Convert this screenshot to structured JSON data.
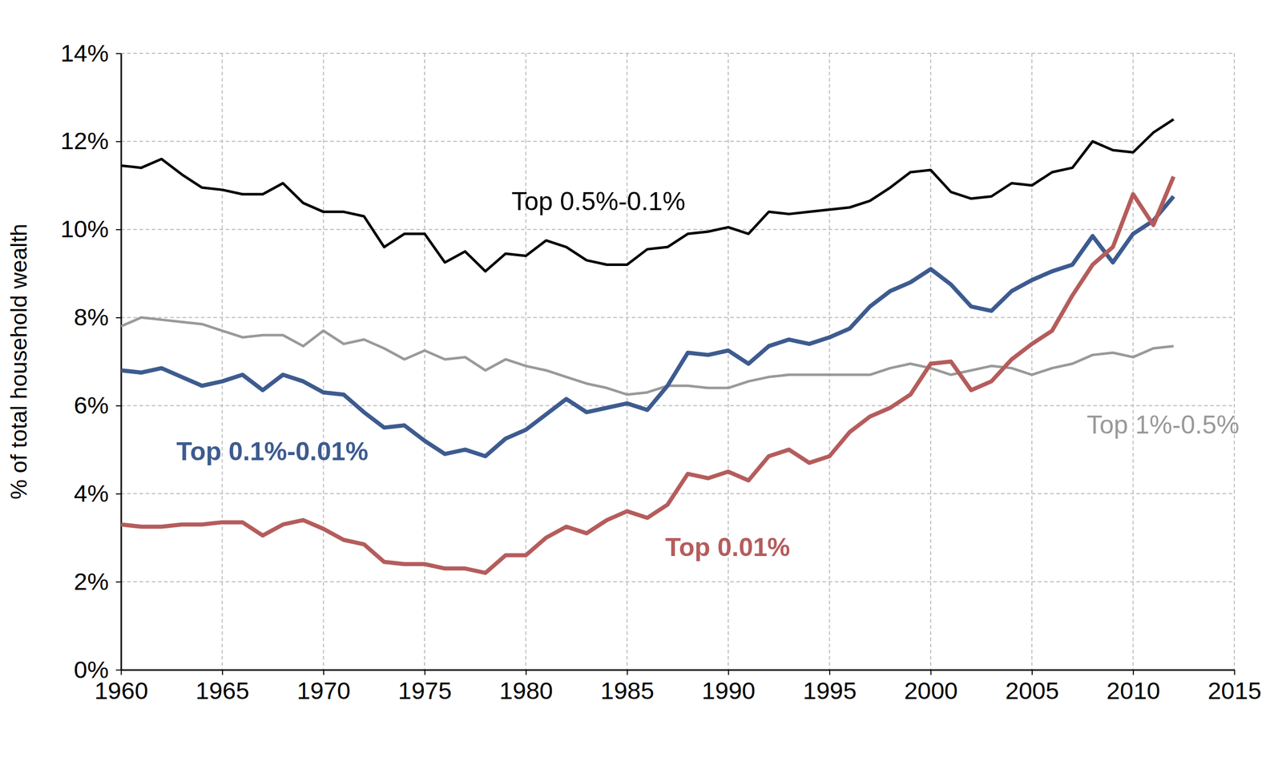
{
  "chart_data": {
    "type": "line",
    "y_label": "% of total household wealth",
    "x": [
      1960,
      1961,
      1962,
      1963,
      1964,
      1965,
      1966,
      1967,
      1968,
      1969,
      1970,
      1971,
      1972,
      1973,
      1974,
      1975,
      1976,
      1977,
      1978,
      1979,
      1980,
      1981,
      1982,
      1983,
      1984,
      1985,
      1986,
      1987,
      1988,
      1989,
      1990,
      1991,
      1992,
      1993,
      1994,
      1995,
      1996,
      1997,
      1998,
      1999,
      2000,
      2001,
      2002,
      2003,
      2004,
      2005,
      2006,
      2007,
      2008,
      2009,
      2010,
      2011,
      2012
    ],
    "series": [
      {
        "name": "Top 0.5%-0.1%",
        "color": "#000000",
        "values": [
          11.45,
          11.4,
          11.6,
          11.25,
          10.95,
          10.9,
          10.8,
          10.8,
          11.05,
          10.6,
          10.4,
          10.4,
          10.3,
          9.6,
          9.9,
          9.9,
          9.25,
          9.5,
          9.05,
          9.45,
          9.4,
          9.75,
          9.6,
          9.3,
          9.2,
          9.2,
          9.55,
          9.6,
          9.9,
          9.95,
          10.05,
          9.9,
          10.4,
          10.35,
          10.4,
          10.45,
          10.5,
          10.65,
          10.95,
          11.3,
          11.35,
          10.85,
          10.7,
          10.75,
          11.05,
          11.0,
          11.3,
          11.4,
          12.0,
          11.8,
          11.75,
          12.2,
          12.5
        ]
      },
      {
        "name": "Top 1%-0.5%",
        "color": "#999999",
        "values": [
          7.8,
          8.0,
          7.95,
          7.9,
          7.85,
          7.7,
          7.55,
          7.6,
          7.6,
          7.35,
          7.7,
          7.4,
          7.5,
          7.3,
          7.05,
          7.25,
          7.05,
          7.1,
          6.8,
          7.05,
          6.9,
          6.8,
          6.65,
          6.5,
          6.4,
          6.25,
          6.3,
          6.45,
          6.45,
          6.4,
          6.4,
          6.55,
          6.65,
          6.7,
          6.7,
          6.7,
          6.7,
          6.7,
          6.85,
          6.95,
          6.85,
          6.7,
          6.8,
          6.9,
          6.85,
          6.7,
          6.85,
          6.95,
          7.15,
          7.2,
          7.1,
          7.3,
          7.35
        ]
      },
      {
        "name": "Top 0.1%-0.01%",
        "color": "#3d5b8f",
        "values": [
          6.8,
          6.75,
          6.85,
          6.65,
          6.45,
          6.55,
          6.7,
          6.35,
          6.7,
          6.55,
          6.3,
          6.25,
          5.85,
          5.5,
          5.55,
          5.2,
          4.9,
          5.0,
          4.85,
          5.25,
          5.45,
          5.8,
          6.15,
          5.85,
          5.95,
          6.05,
          5.9,
          6.45,
          7.2,
          7.15,
          7.25,
          6.95,
          7.35,
          7.5,
          7.4,
          7.55,
          7.75,
          8.25,
          8.6,
          8.8,
          9.1,
          8.75,
          8.25,
          8.15,
          8.6,
          8.85,
          9.05,
          9.2,
          9.85,
          9.25,
          9.9,
          10.2,
          10.75
        ]
      },
      {
        "name": "Top 0.01%",
        "color": "#b55c5c",
        "values": [
          3.3,
          3.25,
          3.25,
          3.3,
          3.3,
          3.35,
          3.35,
          3.05,
          3.3,
          3.4,
          3.2,
          2.95,
          2.85,
          2.45,
          2.4,
          2.4,
          2.3,
          2.3,
          2.2,
          2.6,
          2.6,
          3.0,
          3.25,
          3.1,
          3.4,
          3.6,
          3.45,
          3.75,
          4.45,
          4.35,
          4.5,
          4.3,
          4.85,
          5.0,
          4.7,
          4.85,
          5.4,
          5.75,
          5.95,
          6.25,
          6.95,
          7.0,
          6.35,
          6.55,
          7.05,
          7.4,
          7.7,
          8.5,
          9.2,
          9.6,
          10.8,
          10.1,
          11.2
        ]
      }
    ],
    "xlim": [
      1960,
      2015
    ],
    "xticks": [
      1960,
      1965,
      1970,
      1975,
      1980,
      1985,
      1990,
      1995,
      2000,
      2005,
      2010,
      2015
    ],
    "ylim": [
      0,
      14
    ],
    "yticks": [
      {
        "value": 0,
        "label": "0%"
      },
      {
        "value": 2,
        "label": "2%"
      },
      {
        "value": 4,
        "label": "4%"
      },
      {
        "value": 6,
        "label": "6%"
      },
      {
        "value": 8,
        "label": "8%"
      },
      {
        "value": 10,
        "label": "10%"
      },
      {
        "value": 12,
        "label": "12%"
      },
      {
        "value": 14,
        "label": "14%"
      }
    ],
    "grid": true
  }
}
